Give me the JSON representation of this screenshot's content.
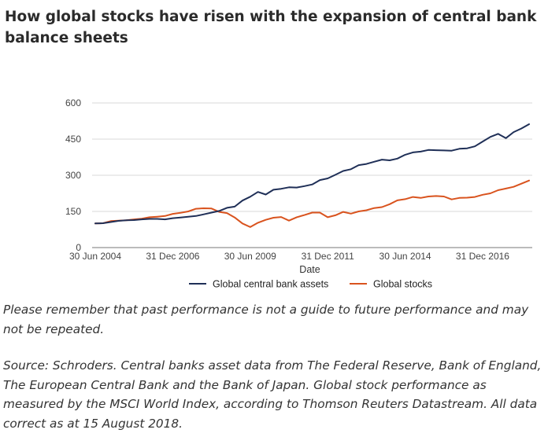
{
  "title": "How global stocks have risen with the expansion of central bank balance sheets",
  "disclaimer": "Please remember that past performance is not a guide to future performance and may not be repeated.",
  "source": "Source: Schroders. Central banks asset data from The Federal Reserve, Bank of England, The European Central Bank and the Bank of Japan. Global stock performance as measured by the MSCI World Index, according to Thomson Reuters Datastream. All data correct as at 15 August 2018.",
  "chart_data": {
    "type": "line",
    "title": "How global stocks have risen with the expansion of central bank balance sheets",
    "xlabel": "Date",
    "ylabel": "",
    "ylim": [
      0,
      600
    ],
    "yticks": [
      0,
      150,
      300,
      450,
      600
    ],
    "grid": true,
    "legend_position": "bottom",
    "x_tick_labels": [
      "30 Jun 2004",
      "31 Dec 2006",
      "30 Jun 2009",
      "31 Dec 2011",
      "30 Jun 2014",
      "31 Dec 2016"
    ],
    "x": [
      "Jun 2004",
      "Sep 2004",
      "Dec 2004",
      "Mar 2005",
      "Jun 2005",
      "Sep 2005",
      "Dec 2005",
      "Mar 2006",
      "Jun 2006",
      "Sep 2006",
      "Dec 2006",
      "Mar 2007",
      "Jun 2007",
      "Sep 2007",
      "Dec 2007",
      "Mar 2008",
      "Jun 2008",
      "Sep 2008",
      "Dec 2008",
      "Mar 2009",
      "Jun 2009",
      "Sep 2009",
      "Dec 2009",
      "Mar 2010",
      "Jun 2010",
      "Sep 2010",
      "Dec 2010",
      "Mar 2011",
      "Jun 2011",
      "Sep 2011",
      "Dec 2011",
      "Mar 2012",
      "Jun 2012",
      "Sep 2012",
      "Dec 2012",
      "Mar 2013",
      "Jun 2013",
      "Sep 2013",
      "Dec 2013",
      "Mar 2014",
      "Jun 2014",
      "Sep 2014",
      "Dec 2014",
      "Mar 2015",
      "Jun 2015",
      "Sep 2015",
      "Dec 2015",
      "Mar 2016",
      "Jun 2016",
      "Sep 2016",
      "Dec 2016",
      "Mar 2017",
      "Jun 2017",
      "Sep 2017",
      "Dec 2017",
      "Mar 2018",
      "Jun 2018"
    ],
    "series": [
      {
        "name": "Global central bank assets",
        "color": "#1f2f57",
        "values": [
          100,
          101,
          106,
          111,
          113,
          114,
          117,
          119,
          119,
          117,
          122,
          125,
          128,
          131,
          138,
          145,
          152,
          165,
          170,
          195,
          211,
          231,
          220,
          240,
          244,
          250,
          249,
          255,
          262,
          280,
          287,
          302,
          318,
          325,
          342,
          347,
          356,
          365,
          362,
          369,
          385,
          395,
          398,
          405,
          404,
          403,
          402,
          410,
          412,
          420,
          440,
          459,
          472,
          454,
          479,
          494,
          512
        ]
      },
      {
        "name": "Global stocks",
        "color": "#d9531e",
        "values": [
          100,
          101,
          110,
          112,
          113,
          117,
          120,
          126,
          128,
          131,
          140,
          144,
          150,
          161,
          163,
          162,
          148,
          143,
          125,
          100,
          85,
          103,
          115,
          124,
          127,
          112,
          126,
          135,
          145,
          145,
          126,
          134,
          148,
          141,
          150,
          155,
          164,
          168,
          180,
          196,
          201,
          210,
          206,
          212,
          214,
          212,
          200,
          206,
          207,
          210,
          219,
          225,
          238,
          245,
          252,
          265,
          278
        ]
      }
    ]
  }
}
